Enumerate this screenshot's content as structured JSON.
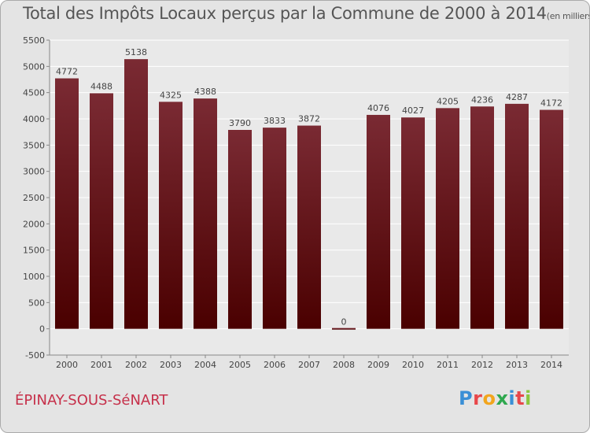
{
  "header": {
    "title": "Total des Impôts Locaux perçus par la Commune de 2000 à 2014",
    "unit": "(en milliers d'€)"
  },
  "footer": {
    "commune": "ÉPINAY-SOUS-SéNART",
    "brand": [
      "P",
      "r",
      "o",
      "x",
      "i",
      "t",
      "i"
    ],
    "brand_colors": [
      "#3a8fd6",
      "#e8474a",
      "#f2a51d",
      "#2fa84f",
      "#3a8fd6",
      "#e8474a",
      "#8cc63e"
    ]
  },
  "colors": {
    "bar_top": "#7a2a33",
    "bar_bottom": "#4a0000",
    "plot_bg": "#e9e9e9",
    "grid": "#ffffff"
  },
  "chart_data": {
    "type": "bar",
    "title": "Total des Impôts Locaux perçus par la Commune de 2000 à 2014",
    "unit": "(en milliers d'€)",
    "categories": [
      "2000",
      "2001",
      "2002",
      "2003",
      "2004",
      "2005",
      "2006",
      "2007",
      "2008",
      "2009",
      "2010",
      "2011",
      "2012",
      "2013",
      "2014"
    ],
    "values": [
      4772,
      4488,
      5138,
      4325,
      4388,
      3790,
      3833,
      3872,
      0,
      4076,
      4027,
      4205,
      4236,
      4287,
      4172
    ],
    "value_labels": [
      "4772",
      "4488",
      "5138",
      "4325",
      "4388",
      "3790",
      "3833",
      "3872",
      "0",
      "4076",
      "4027",
      "4205",
      "4236",
      "4287",
      "4172"
    ],
    "yticks": [
      -500,
      0,
      500,
      1000,
      1500,
      2000,
      2500,
      3000,
      3500,
      4000,
      4500,
      5000,
      5500
    ],
    "ylim": [
      -500,
      5500
    ],
    "grid": true,
    "xlabel": "",
    "ylabel": ""
  }
}
